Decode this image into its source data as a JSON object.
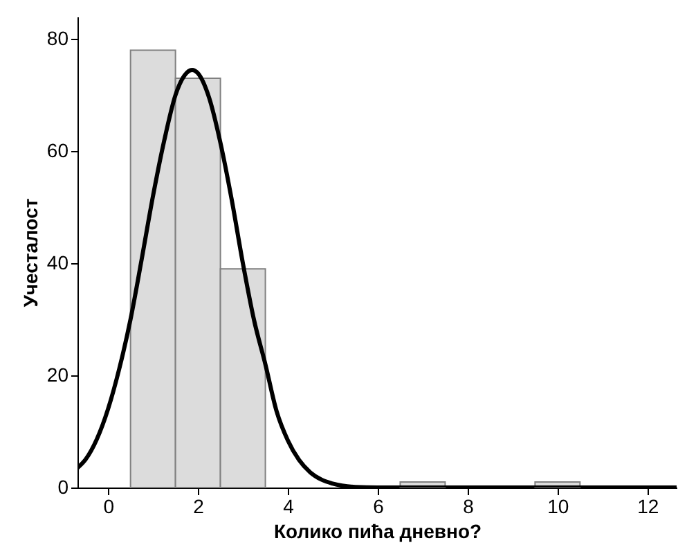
{
  "chart_data": {
    "type": "histogram",
    "xlabel": "Колико пића дневно?",
    "ylabel": "Учесталост",
    "bins": [
      0.5,
      1.5,
      2.5,
      3.5,
      4.5,
      5.5,
      6.5,
      7.5,
      8.5,
      9.5,
      10.5,
      11.5,
      12.5
    ],
    "values": [
      78,
      73,
      39,
      0,
      0,
      0,
      1,
      0,
      0,
      1,
      0,
      0
    ],
    "color": "#dcdcdc",
    "series": [
      {
        "type": "line",
        "color": "#000000",
        "x": [
          -0.68,
          -0.5,
          0,
          0.25,
          0.5,
          0.75,
          1,
          1.25,
          1.5,
          1.7,
          1.87,
          2,
          2.25,
          2.5,
          2.75,
          3,
          3.25,
          3.5,
          3.75,
          4,
          4.25,
          4.5,
          4.75,
          5,
          5.5,
          6,
          12.65
        ],
        "values": [
          3.5,
          5,
          14,
          21.2,
          30,
          40.8,
          52,
          61.9,
          70,
          73.5,
          74.5,
          73.9,
          69.5,
          61.5,
          51.4,
          40,
          29.8,
          22,
          13.6,
          8.4,
          4.9,
          2.7,
          1.4,
          0.7,
          0.1,
          0,
          0
        ]
      }
    ],
    "xlim": [
      -0.68,
      12.65
    ],
    "xticks": [
      0,
      2,
      4,
      6,
      8,
      10,
      12
    ],
    "ylim": [
      0,
      84
    ],
    "yticks": [
      0,
      20,
      40,
      60,
      80
    ],
    "grid": false
  }
}
